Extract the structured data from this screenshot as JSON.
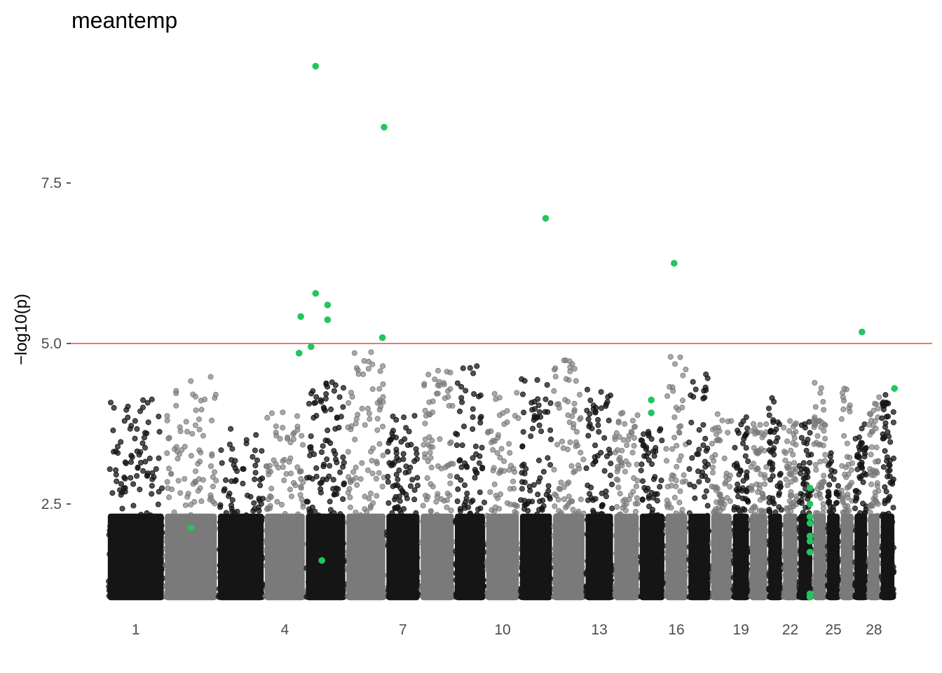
{
  "chart_data": {
    "type": "scatter",
    "title": "meantemp",
    "ylabel": "−log10(p)",
    "xlabel": "",
    "ylim": [
      0.85,
      9.75
    ],
    "y_ticks": [
      2.5,
      5.0,
      7.5
    ],
    "y_tick_labels": [
      "2.5",
      "5.0",
      "7.5"
    ],
    "x_tick_labels": [
      "1",
      "4",
      "7",
      "10",
      "13",
      "16",
      "19",
      "22",
      "25",
      "28"
    ],
    "x_tick_chromosomes": [
      1,
      4,
      7,
      10,
      13,
      16,
      19,
      22,
      25,
      28
    ],
    "threshold": {
      "value": 5.0,
      "color": "#e8584a"
    },
    "grid": false,
    "colors": {
      "dark": "#151515",
      "light": "#7a7a7a",
      "highlight": "#22c55e"
    },
    "chromosomes": [
      {
        "chr": 1,
        "start": 0.0,
        "end": 1.0,
        "shade": "dark",
        "peak": 4.15
      },
      {
        "chr": 2,
        "start": 1.0,
        "end": 1.93,
        "shade": "light",
        "peak": 4.5
      },
      {
        "chr": 3,
        "start": 1.93,
        "end": 2.75,
        "shade": "dark",
        "peak": 3.7
      },
      {
        "chr": 4,
        "start": 2.75,
        "end": 3.47,
        "shade": "light",
        "peak": 3.95
      },
      {
        "chr": 5,
        "start": 3.47,
        "end": 4.18,
        "shade": "dark",
        "peak": 4.4
      },
      {
        "chr": 6,
        "start": 4.18,
        "end": 4.88,
        "shade": "light",
        "peak": 4.95
      },
      {
        "chr": 7,
        "start": 4.88,
        "end": 5.48,
        "shade": "dark",
        "peak": 3.9
      },
      {
        "chr": 8,
        "start": 5.48,
        "end": 6.08,
        "shade": "light",
        "peak": 4.6
      },
      {
        "chr": 9,
        "start": 6.08,
        "end": 6.63,
        "shade": "dark",
        "peak": 4.65
      },
      {
        "chr": 10,
        "start": 6.63,
        "end": 7.22,
        "shade": "light",
        "peak": 4.35
      },
      {
        "chr": 11,
        "start": 7.22,
        "end": 7.8,
        "shade": "dark",
        "peak": 4.45
      },
      {
        "chr": 12,
        "start": 7.8,
        "end": 8.37,
        "shade": "light",
        "peak": 4.75
      },
      {
        "chr": 13,
        "start": 8.37,
        "end": 8.87,
        "shade": "dark",
        "peak": 4.3
      },
      {
        "chr": 14,
        "start": 8.87,
        "end": 9.32,
        "shade": "light",
        "peak": 4.0
      },
      {
        "chr": 15,
        "start": 9.32,
        "end": 9.77,
        "shade": "dark",
        "peak": 3.7
      },
      {
        "chr": 16,
        "start": 9.77,
        "end": 10.17,
        "shade": "light",
        "peak": 4.9
      },
      {
        "chr": 17,
        "start": 10.17,
        "end": 10.57,
        "shade": "dark",
        "peak": 4.6
      },
      {
        "chr": 18,
        "start": 10.57,
        "end": 10.95,
        "shade": "light",
        "peak": 3.9
      },
      {
        "chr": 19,
        "start": 10.95,
        "end": 11.25,
        "shade": "dark",
        "peak": 3.9
      },
      {
        "chr": 20,
        "start": 11.25,
        "end": 11.57,
        "shade": "light",
        "peak": 3.75
      },
      {
        "chr": 21,
        "start": 11.57,
        "end": 11.83,
        "shade": "dark",
        "peak": 4.2
      },
      {
        "chr": 22,
        "start": 11.83,
        "end": 12.1,
        "shade": "light",
        "peak": 3.8
      },
      {
        "chr": 23,
        "start": 12.1,
        "end": 12.36,
        "shade": "dark",
        "peak": 3.85
      },
      {
        "chr": 24,
        "start": 12.36,
        "end": 12.6,
        "shade": "light",
        "peak": 4.5
      },
      {
        "chr": 25,
        "start": 12.6,
        "end": 12.84,
        "shade": "dark",
        "peak": 3.4
      },
      {
        "chr": 26,
        "start": 12.84,
        "end": 13.08,
        "shade": "light",
        "peak": 4.35
      },
      {
        "chr": 27,
        "start": 13.08,
        "end": 13.32,
        "shade": "dark",
        "peak": 3.8
      },
      {
        "chr": 28,
        "start": 13.32,
        "end": 13.54,
        "shade": "light",
        "peak": 4.25
      },
      {
        "chr": 29,
        "start": 13.54,
        "end": 13.8,
        "shade": "dark",
        "peak": 4.3
      }
    ],
    "highlighted_points": [
      {
        "x": 1.47,
        "y": 2.13
      },
      {
        "x": 3.36,
        "y": 4.85
      },
      {
        "x": 3.39,
        "y": 5.42
      },
      {
        "x": 3.57,
        "y": 4.95
      },
      {
        "x": 3.65,
        "y": 9.32
      },
      {
        "x": 3.65,
        "y": 5.78
      },
      {
        "x": 3.76,
        "y": 1.62
      },
      {
        "x": 3.86,
        "y": 5.6
      },
      {
        "x": 3.86,
        "y": 5.37
      },
      {
        "x": 4.82,
        "y": 5.09
      },
      {
        "x": 4.85,
        "y": 8.37
      },
      {
        "x": 7.68,
        "y": 6.95
      },
      {
        "x": 9.53,
        "y": 4.12
      },
      {
        "x": 9.53,
        "y": 3.92
      },
      {
        "x": 9.93,
        "y": 6.25
      },
      {
        "x": 12.31,
        "y": 2.75
      },
      {
        "x": 12.31,
        "y": 2.5
      },
      {
        "x": 12.31,
        "y": 2.3
      },
      {
        "x": 12.31,
        "y": 2.2
      },
      {
        "x": 12.31,
        "y": 2.0
      },
      {
        "x": 12.31,
        "y": 1.92
      },
      {
        "x": 12.31,
        "y": 1.75
      },
      {
        "x": 12.31,
        "y": 1.1
      },
      {
        "x": 12.31,
        "y": 1.05
      },
      {
        "x": 13.22,
        "y": 5.18
      },
      {
        "x": 13.79,
        "y": 4.3
      }
    ]
  }
}
